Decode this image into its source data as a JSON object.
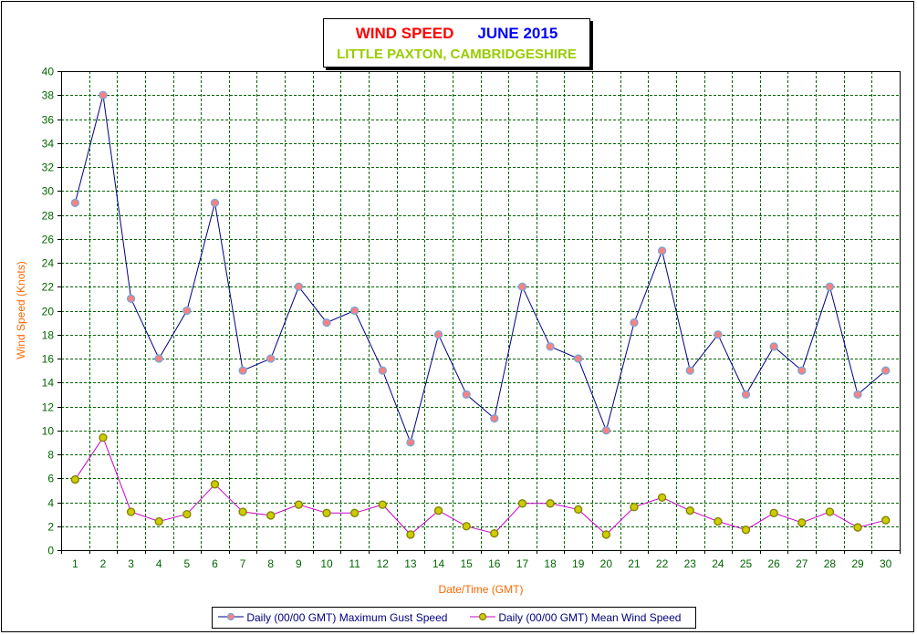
{
  "title": {
    "part1": "WIND SPEED",
    "part2": "JUNE 2015",
    "subtitle": "LITTLE PAXTON, CAMBRIDGESHIRE"
  },
  "colors": {
    "gust_line": "#000080",
    "gust_marker_fill": "#ff8080",
    "gust_marker_stroke": "#6fa8dc",
    "mean_line": "#cc00cc",
    "mean_marker_fill": "#cccc00",
    "mean_marker_stroke": "#808000",
    "grid": "#006600",
    "tick_label": "#006600",
    "axis_title": "#ff6600"
  },
  "chart_data": {
    "type": "line",
    "xlabel": "Date/Time (GMT)",
    "ylabel": "Wind Speed (Knots)",
    "categories": [
      "1",
      "2",
      "3",
      "4",
      "5",
      "6",
      "7",
      "8",
      "9",
      "10",
      "11",
      "12",
      "13",
      "14",
      "15",
      "16",
      "17",
      "18",
      "19",
      "20",
      "21",
      "22",
      "23",
      "24",
      "25",
      "26",
      "27",
      "28",
      "29",
      "30"
    ],
    "ylim": [
      0,
      40
    ],
    "yticks": [
      0,
      2,
      4,
      6,
      8,
      10,
      12,
      14,
      16,
      18,
      20,
      22,
      24,
      26,
      28,
      30,
      32,
      34,
      36,
      38,
      40
    ],
    "grid": true,
    "legend_position": "bottom",
    "series": [
      {
        "name": "Daily (00/00 GMT) Maximum Gust Speed",
        "values": [
          29,
          38,
          21,
          16,
          20,
          29,
          15,
          16,
          22,
          19,
          20,
          15,
          9,
          18,
          13,
          11,
          22,
          17,
          16,
          10,
          19,
          25,
          15,
          18,
          13,
          17,
          15,
          22,
          13,
          15
        ]
      },
      {
        "name": "Daily (00/00 GMT) Mean Wind Speed",
        "values": [
          5.9,
          9.4,
          3.2,
          2.4,
          3.0,
          5.5,
          3.2,
          2.9,
          3.8,
          3.1,
          3.1,
          3.8,
          1.3,
          3.3,
          2.0,
          1.4,
          3.9,
          3.9,
          3.4,
          1.3,
          3.6,
          4.4,
          3.3,
          2.4,
          1.7,
          3.1,
          2.3,
          3.2,
          1.9,
          2.5
        ]
      }
    ]
  }
}
